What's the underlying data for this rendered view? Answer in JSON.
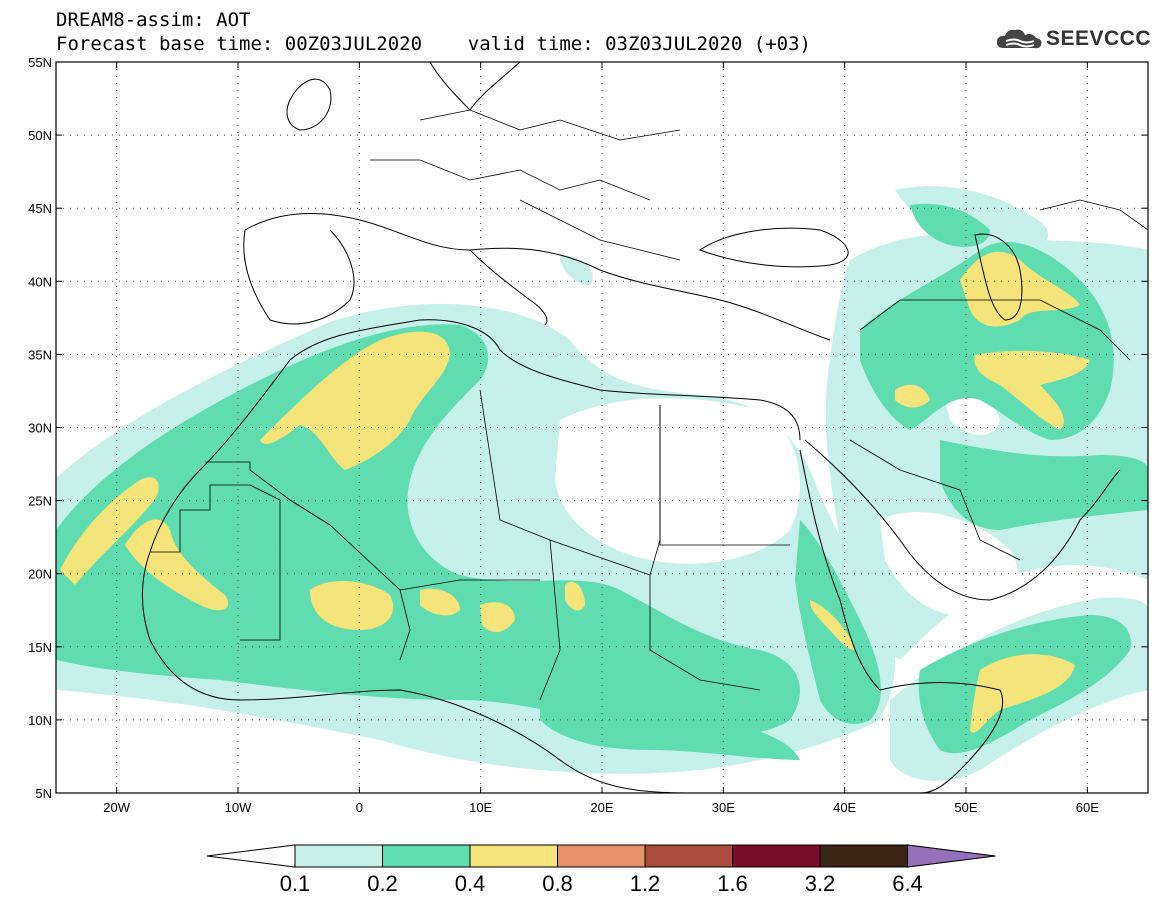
{
  "header": {
    "line1": "DREAM8-assim: AOT",
    "line2": "Forecast base time: 00Z03JUL2020    valid time: 03Z03JUL2020 (+03)"
  },
  "logo": {
    "text": "SEEVCCC",
    "icon": "cloud-icon"
  },
  "map": {
    "lon_range": [
      -25,
      65
    ],
    "lat_range": [
      5,
      55
    ],
    "lat_ticks": [
      {
        "value": 55,
        "label": "55N"
      },
      {
        "value": 50,
        "label": "50N"
      },
      {
        "value": 45,
        "label": "45N"
      },
      {
        "value": 40,
        "label": "40N"
      },
      {
        "value": 35,
        "label": "35N"
      },
      {
        "value": 30,
        "label": "30N"
      },
      {
        "value": 25,
        "label": "25N"
      },
      {
        "value": 20,
        "label": "20N"
      },
      {
        "value": 15,
        "label": "15N"
      },
      {
        "value": 10,
        "label": "10N"
      },
      {
        "value": 5,
        "label": "5N"
      }
    ],
    "lon_ticks": [
      {
        "value": -20,
        "label": "20W"
      },
      {
        "value": -10,
        "label": "10W"
      },
      {
        "value": 0,
        "label": "0"
      },
      {
        "value": 10,
        "label": "10E"
      },
      {
        "value": 20,
        "label": "20E"
      },
      {
        "value": 30,
        "label": "30E"
      },
      {
        "value": 40,
        "label": "40E"
      },
      {
        "value": 50,
        "label": "50E"
      },
      {
        "value": 60,
        "label": "60E"
      }
    ],
    "grid": "dotted"
  },
  "colorbar": {
    "colors": [
      "#ffffff",
      "#c6f0ea",
      "#5fdcb0",
      "#f4e47a",
      "#e8926a",
      "#aa4d3c",
      "#7a0d2a",
      "#3a2416",
      "#9370b8"
    ],
    "labels": [
      "0.1",
      "0.2",
      "0.4",
      "0.8",
      "1.2",
      "1.6",
      "3.2",
      "6.4"
    ]
  }
}
